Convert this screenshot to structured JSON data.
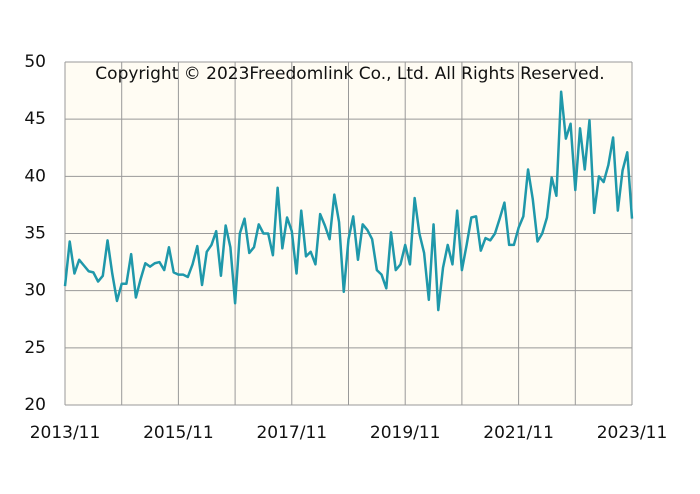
{
  "chart_data": {
    "type": "line",
    "annotation": "Copyright © 2023Freedomlink Co., Ltd. All Rights Reserved.",
    "x": [
      "2013/11",
      "2013/12",
      "2014/01",
      "2014/02",
      "2014/03",
      "2014/04",
      "2014/05",
      "2014/06",
      "2014/07",
      "2014/08",
      "2014/09",
      "2014/10",
      "2014/11",
      "2014/12",
      "2015/01",
      "2015/02",
      "2015/03",
      "2015/04",
      "2015/05",
      "2015/06",
      "2015/07",
      "2015/08",
      "2015/09",
      "2015/10",
      "2015/11",
      "2015/12",
      "2016/01",
      "2016/02",
      "2016/03",
      "2016/04",
      "2016/05",
      "2016/06",
      "2016/07",
      "2016/08",
      "2016/09",
      "2016/10",
      "2016/11",
      "2016/12",
      "2017/01",
      "2017/02",
      "2017/03",
      "2017/04",
      "2017/05",
      "2017/06",
      "2017/07",
      "2017/08",
      "2017/09",
      "2017/10",
      "2017/11",
      "2017/12",
      "2018/01",
      "2018/02",
      "2018/03",
      "2018/04",
      "2018/05",
      "2018/06",
      "2018/07",
      "2018/08",
      "2018/09",
      "2018/10",
      "2018/11",
      "2018/12",
      "2019/01",
      "2019/02",
      "2019/03",
      "2019/04",
      "2019/05",
      "2019/06",
      "2019/07",
      "2019/08",
      "2019/09",
      "2019/10",
      "2019/11",
      "2019/12",
      "2020/01",
      "2020/02",
      "2020/03",
      "2020/04",
      "2020/05",
      "2020/06",
      "2020/07",
      "2020/08",
      "2020/09",
      "2020/10",
      "2020/11",
      "2020/12",
      "2021/01",
      "2021/02",
      "2021/03",
      "2021/04",
      "2021/05",
      "2021/06",
      "2021/07",
      "2021/08",
      "2021/09",
      "2021/10",
      "2021/11",
      "2021/12",
      "2022/01",
      "2022/02",
      "2022/03",
      "2022/04",
      "2022/05",
      "2022/06",
      "2022/07",
      "2022/08",
      "2022/09",
      "2022/10",
      "2022/11",
      "2022/12",
      "2023/01",
      "2023/02",
      "2023/03",
      "2023/04",
      "2023/05",
      "2023/06",
      "2023/07",
      "2023/08",
      "2023/09",
      "2023/10",
      "2023/11"
    ],
    "series": [
      {
        "color": "#1f98aa",
        "values": [
          30.4,
          34.3,
          31.5,
          32.7,
          32.2,
          31.7,
          31.6,
          30.8,
          31.3,
          34.4,
          31.5,
          29.1,
          30.6,
          30.6,
          33.2,
          29.4,
          31.0,
          32.4,
          32.1,
          32.4,
          32.5,
          31.8,
          33.8,
          31.6,
          31.4,
          31.4,
          31.2,
          32.3,
          33.9,
          30.5,
          33.4,
          34.0,
          35.2,
          31.3,
          35.7,
          33.8,
          28.9,
          35.0,
          36.3,
          33.3,
          33.8,
          35.8,
          35.0,
          35.0,
          33.1,
          39.0,
          33.7,
          36.4,
          35.2,
          31.5,
          37.0,
          33.0,
          33.4,
          32.3,
          36.7,
          35.7,
          34.5,
          38.4,
          36.0,
          29.9,
          34.5,
          36.5,
          32.7,
          35.8,
          35.3,
          34.5,
          31.8,
          31.4,
          30.2,
          35.1,
          31.8,
          32.3,
          34.0,
          32.3,
          38.1,
          35.0,
          33.3,
          29.2,
          35.8,
          28.3,
          32.0,
          34.0,
          32.3,
          37.0,
          31.8,
          34.0,
          36.4,
          36.5,
          33.5,
          34.6,
          34.4,
          35.0,
          36.3,
          37.7,
          34.0,
          34.0,
          35.5,
          36.5,
          40.6,
          38.0,
          34.3,
          35.0,
          36.4,
          39.9,
          38.3,
          47.4,
          43.3,
          44.6,
          38.8,
          44.2,
          40.6,
          44.9,
          36.8,
          40.0,
          39.5,
          41.0,
          43.4,
          37.0,
          40.5,
          42.1,
          36.3
        ]
      }
    ],
    "xticks": [
      "2013/11",
      "2015/11",
      "2017/11",
      "2019/11",
      "2021/11",
      "2023/11"
    ],
    "xgrid": [
      "2013/11",
      "2014/11",
      "2015/11",
      "2016/11",
      "2017/11",
      "2018/11",
      "2019/11",
      "2020/11",
      "2021/11",
      "2022/11",
      "2023/11"
    ],
    "ylim": [
      20,
      50
    ],
    "yticks": [
      20,
      25,
      30,
      35,
      40,
      45,
      50
    ],
    "grid": true
  }
}
